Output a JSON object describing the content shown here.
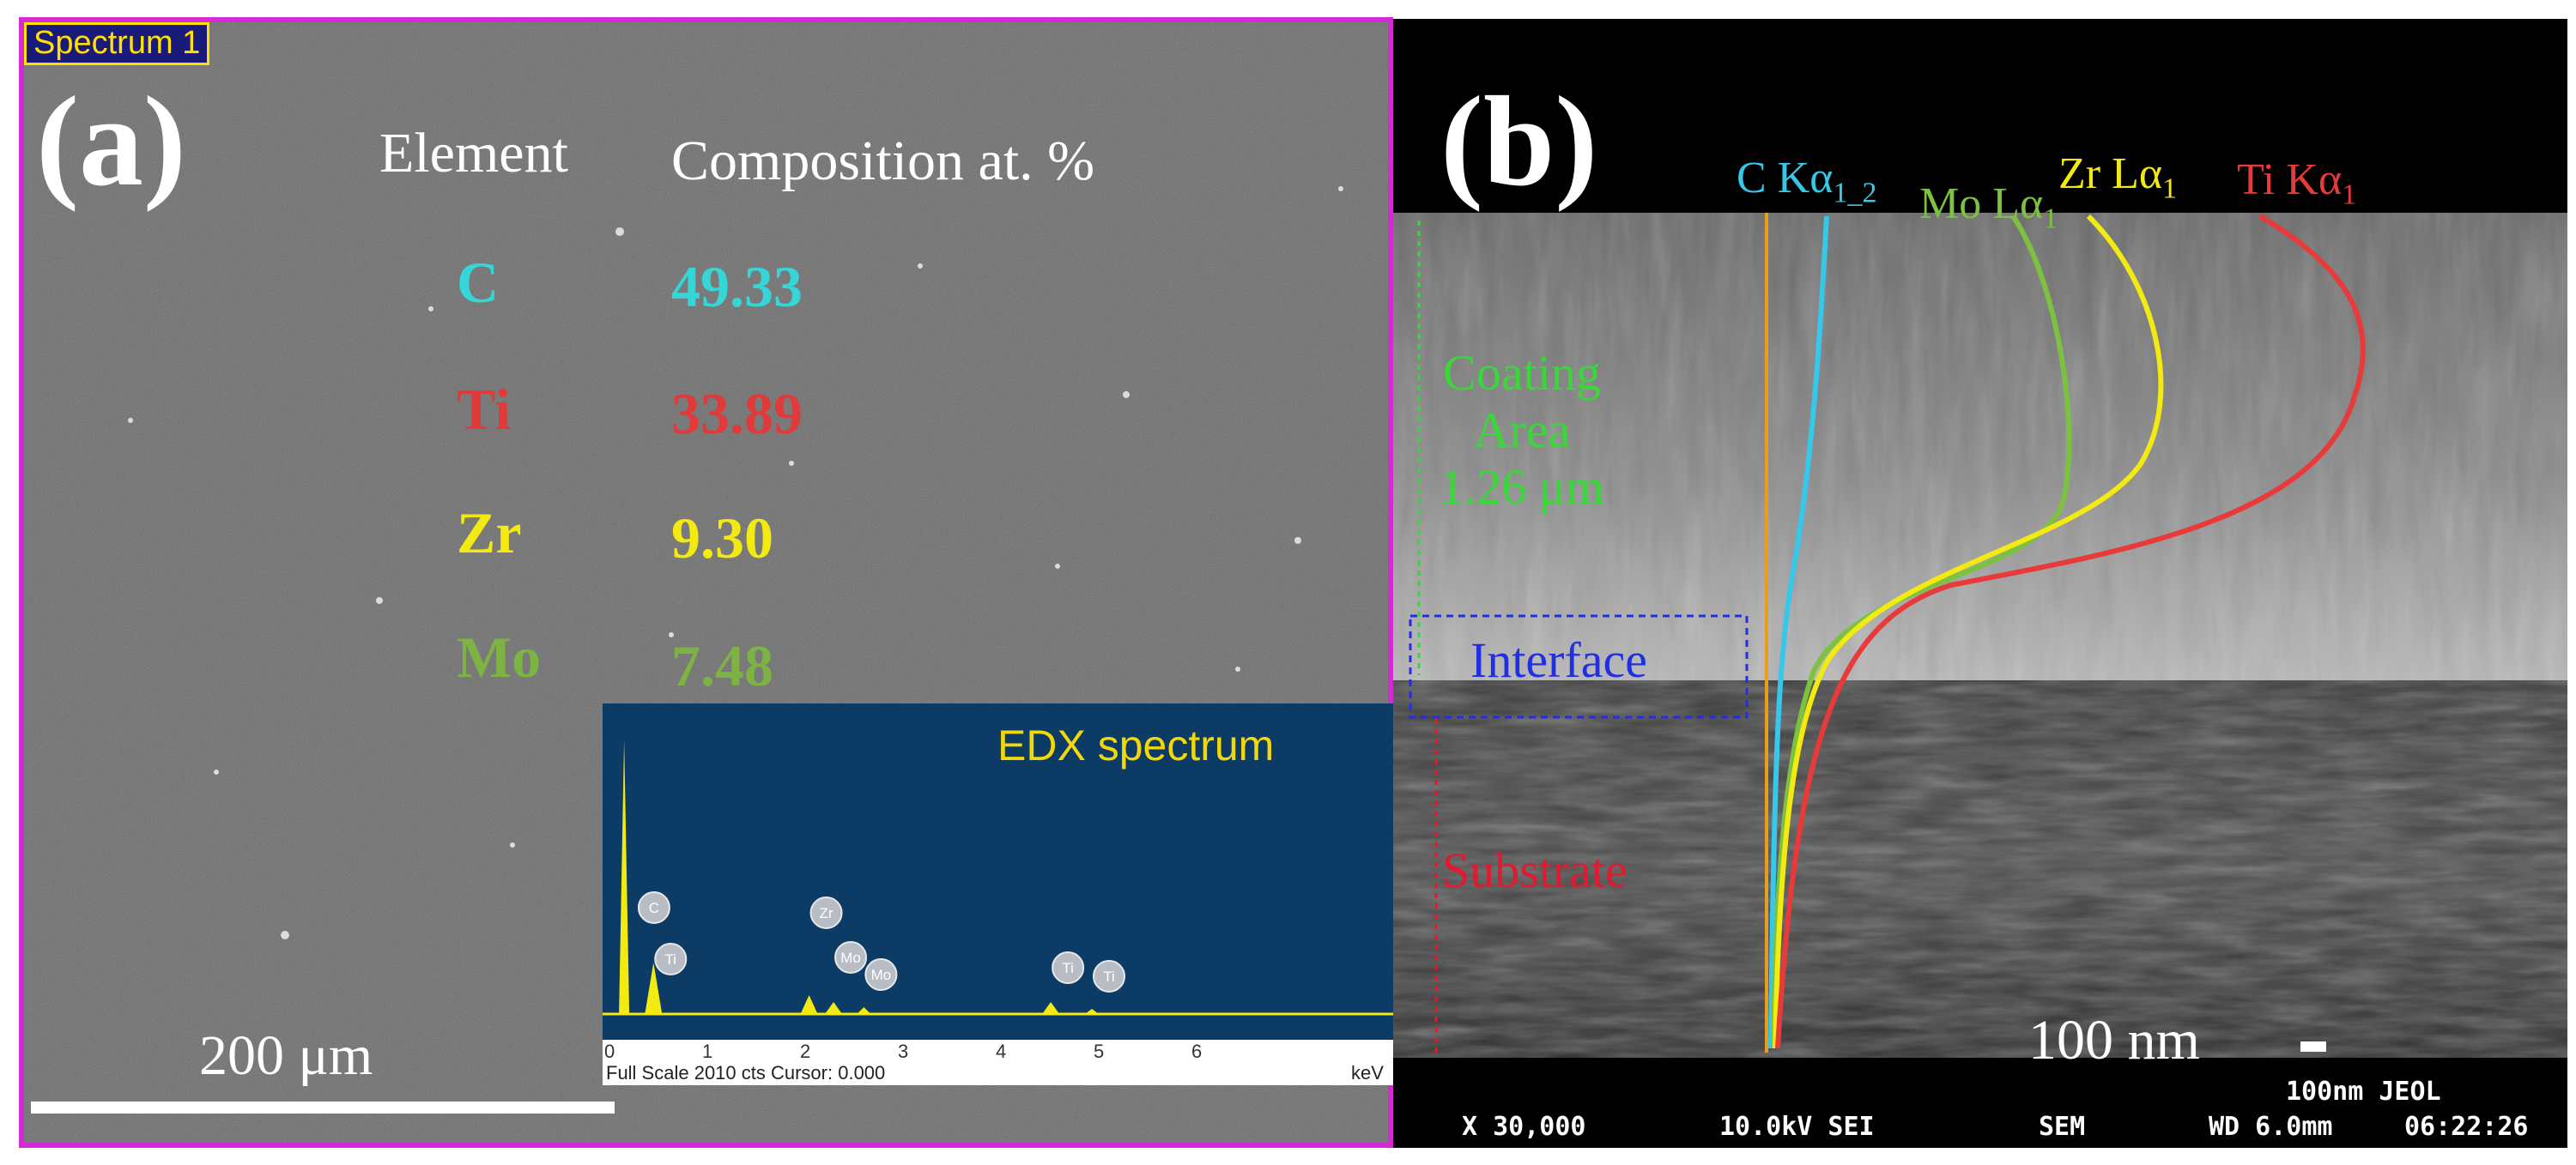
{
  "panel_a": {
    "spectrum_tag": "Spectrum 1",
    "label": "(a)",
    "table_header": {
      "element": "Element",
      "composition": "Composition at. %"
    },
    "rows": [
      {
        "element": "C",
        "value": "49.33",
        "color": "#35d6d8"
      },
      {
        "element": "Ti",
        "value": "33.89",
        "color": "#e03a3a"
      },
      {
        "element": "Zr",
        "value": "9.30",
        "color": "#f2ea10"
      },
      {
        "element": "Mo",
        "value": "7.48",
        "color": "#7cb342"
      }
    ],
    "inset": {
      "title": "EDX spectrum",
      "axis_ticks": [
        "0",
        "1",
        "2",
        "3",
        "4",
        "5",
        "6"
      ],
      "axis_footer": "Full Scale 2010 cts Cursor: 0.000",
      "axis_unit": "keV",
      "peaks": [
        {
          "label": "C",
          "kev": 0.28
        },
        {
          "label": "Ti",
          "kev": 0.45
        },
        {
          "label": "Zr",
          "kev": 2.04
        },
        {
          "label": "Mo",
          "kev": 2.29
        },
        {
          "label": "Mo",
          "kev": 2.6
        },
        {
          "label": "Ti",
          "kev": 4.51
        },
        {
          "label": "Ti",
          "kev": 4.93
        }
      ]
    },
    "scale_bar": "200 μm",
    "colors": {
      "frame": "#d42ad4",
      "background": "#6e6e6e",
      "inset_bg": "#0c3b66",
      "peak": "#f2ea10"
    }
  },
  "panel_b": {
    "label": "(b)",
    "traces": [
      {
        "label": "C Kα",
        "subscript": "1_2",
        "color": "#35c8e8"
      },
      {
        "label": "Mo Lα",
        "subscript": "1",
        "color": "#7cc240"
      },
      {
        "label": "Zr Lα",
        "subscript": "1",
        "color": "#f2ea10"
      },
      {
        "label": "Ti Kα",
        "subscript": "1",
        "color": "#e83a3a"
      }
    ],
    "coating_label": [
      "Coating",
      "Area",
      "1.26 μm"
    ],
    "interface_label": "Interface",
    "substrate_label": "Substrate",
    "scale_bar": "100 nm",
    "sem_info": {
      "scale": "100nm JEOL",
      "magnification": "X 30,000",
      "voltage": "10.0kV SEI",
      "mode": "SEM",
      "wd": "WD 6.0mm",
      "time": "06:22:26"
    },
    "colors": {
      "coating": "#39d839",
      "interface": "#2030e0",
      "substrate": "#e01a30",
      "trace_line": "#e69e1e"
    }
  }
}
